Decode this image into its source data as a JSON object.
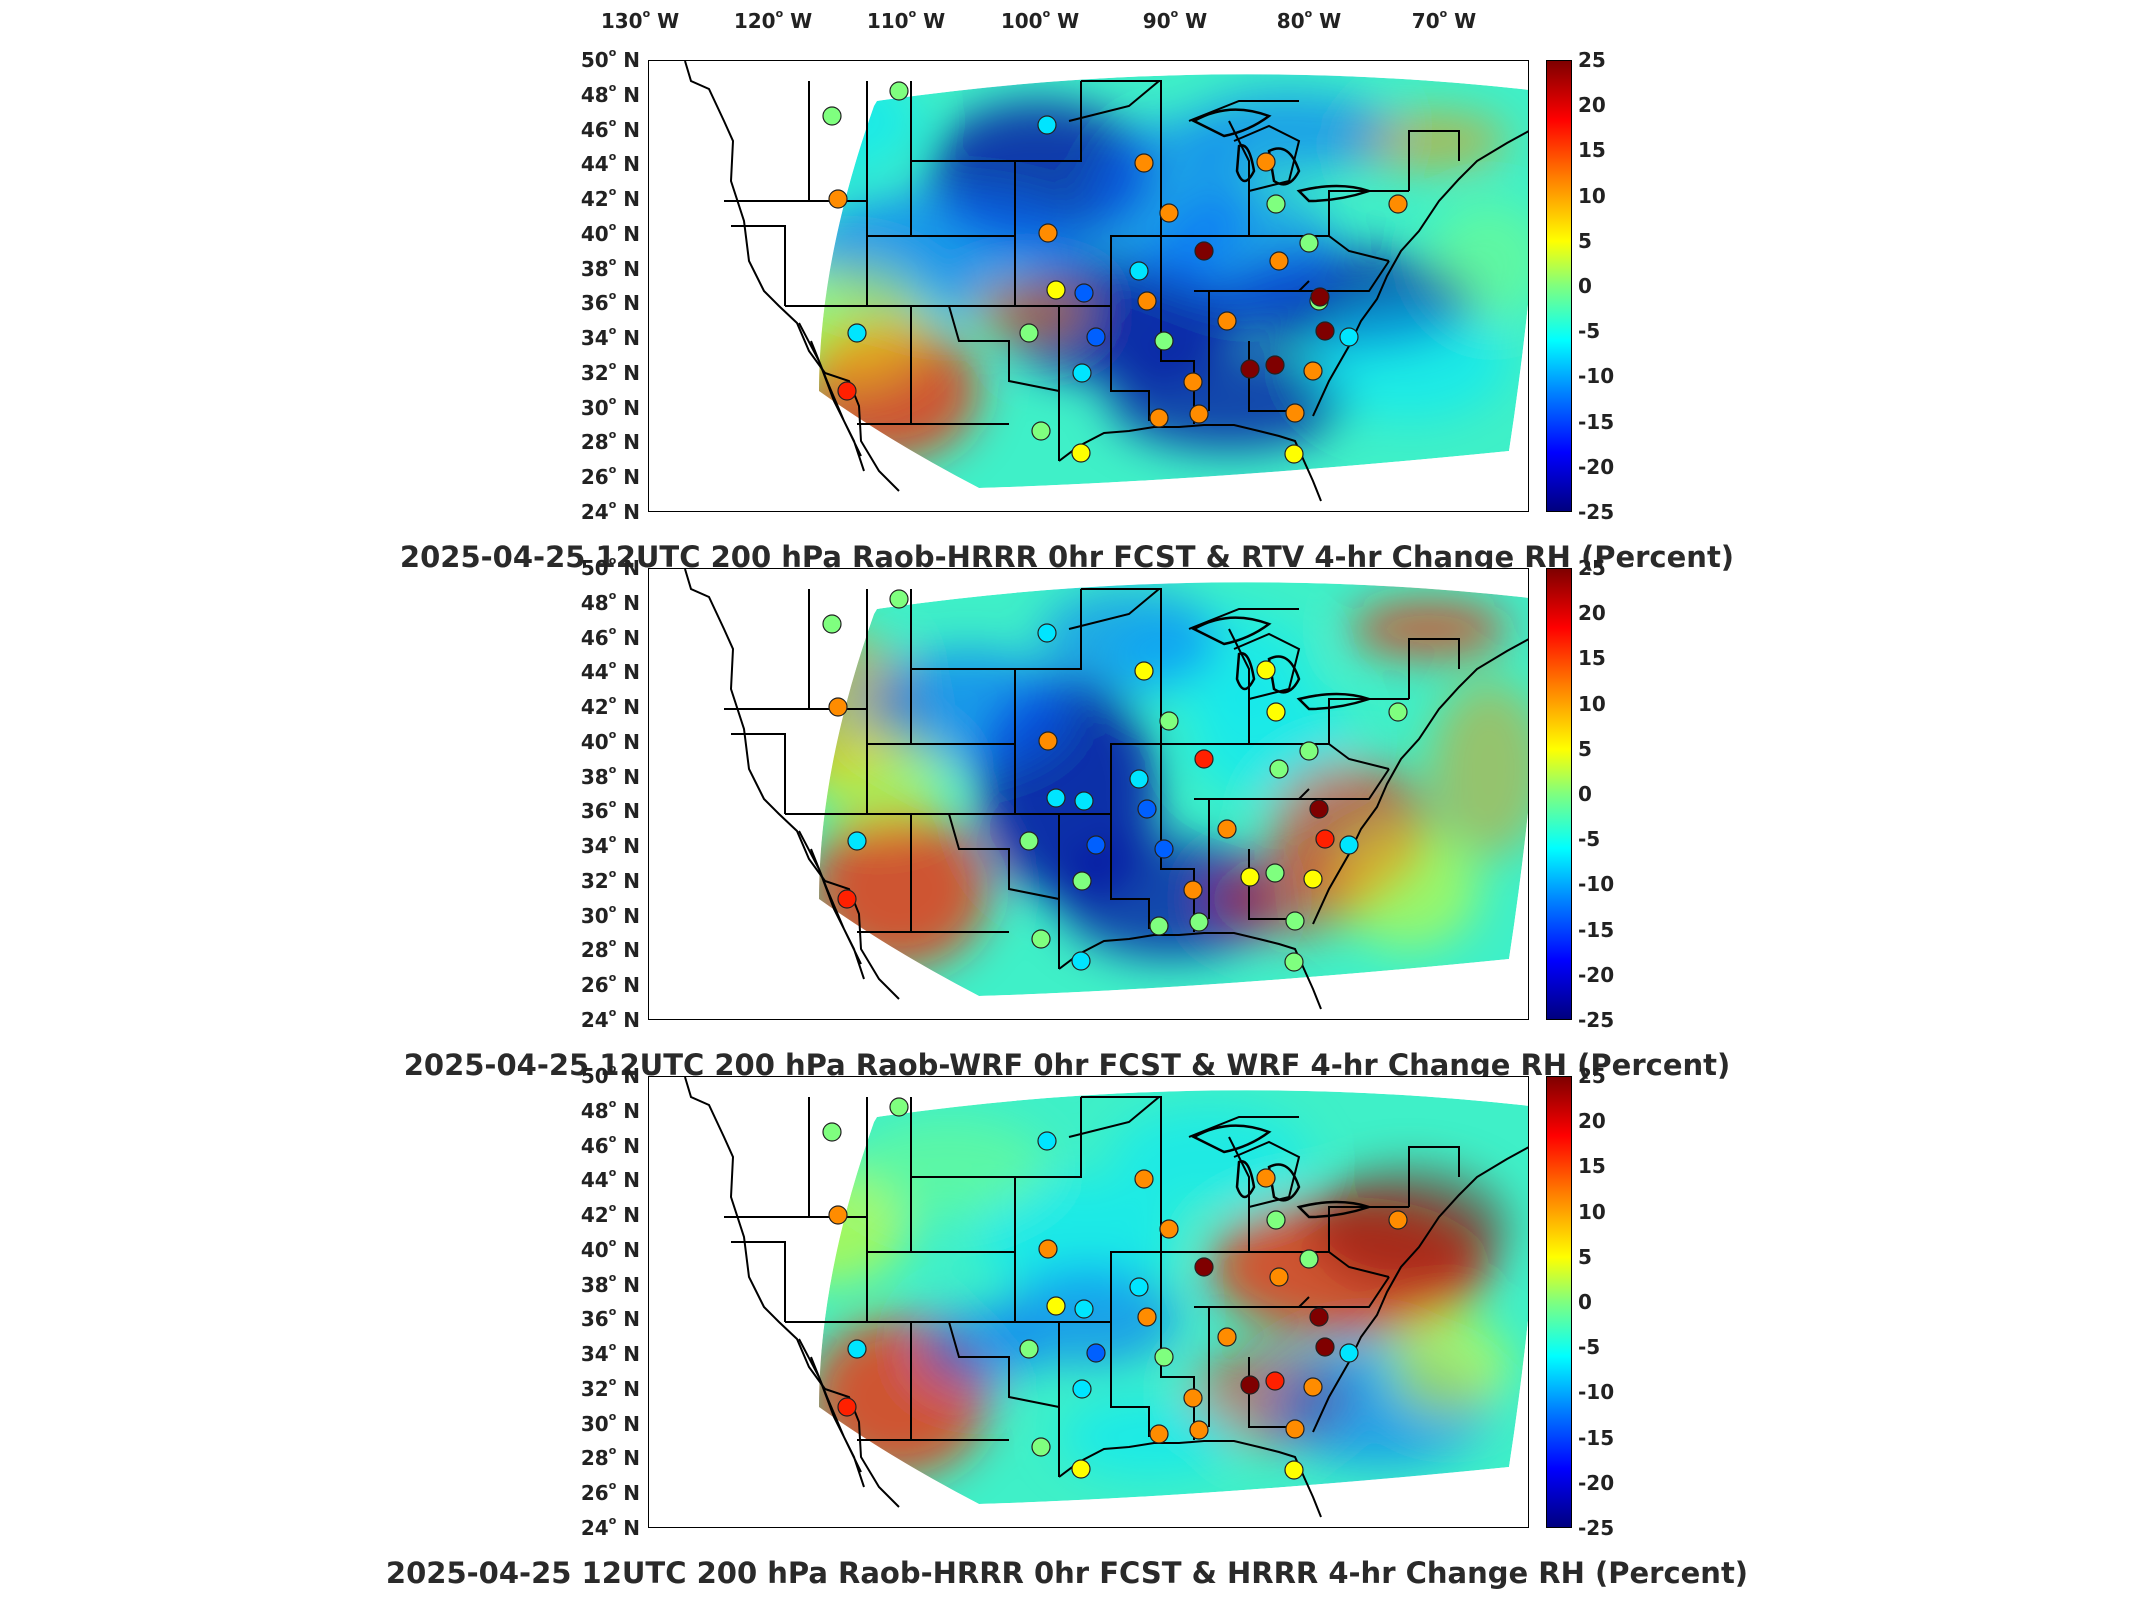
{
  "longitude_labels": [
    {
      "deg": "130",
      "hem": "W"
    },
    {
      "deg": "120",
      "hem": "W"
    },
    {
      "deg": "110",
      "hem": "W"
    },
    {
      "deg": "100",
      "hem": "W"
    },
    {
      "deg": "90",
      "hem": "W"
    },
    {
      "deg": "80",
      "hem": "W"
    },
    {
      "deg": "70",
      "hem": "W"
    }
  ],
  "latitude_labels": [
    {
      "deg": "50",
      "hem": "N"
    },
    {
      "deg": "48",
      "hem": "N"
    },
    {
      "deg": "46",
      "hem": "N"
    },
    {
      "deg": "44",
      "hem": "N"
    },
    {
      "deg": "42",
      "hem": "N"
    },
    {
      "deg": "40",
      "hem": "N"
    },
    {
      "deg": "38",
      "hem": "N"
    },
    {
      "deg": "36",
      "hem": "N"
    },
    {
      "deg": "34",
      "hem": "N"
    },
    {
      "deg": "32",
      "hem": "N"
    },
    {
      "deg": "30",
      "hem": "N"
    },
    {
      "deg": "28",
      "hem": "N"
    },
    {
      "deg": "26",
      "hem": "N"
    },
    {
      "deg": "24",
      "hem": "N"
    }
  ],
  "colorbar": {
    "ticks": [
      "25",
      "20",
      "15",
      "10",
      "5",
      "0",
      "-5",
      "-10",
      "-15",
      "-20",
      "-25"
    ],
    "range": [
      -25,
      25
    ],
    "colormap": "jet"
  },
  "panels": [
    {
      "title": "2025-04-25 12UTC 200 hPa Raob-HRRR 0hr FCST & RTV 4-hr Change RH (Percent)"
    },
    {
      "title": "2025-04-25 12UTC 200 hPa Raob-WRF 0hr FCST & WRF 4-hr Change RH (Percent)"
    },
    {
      "title": "2025-04-25 12UTC 200 hPa Raob-HRRR 0hr FCST & HRRR 4-hr Change RH (Percent)"
    }
  ],
  "colors": {
    "dark_red": "#7f0000",
    "red": "#ff2000",
    "orange": "#ff8c00",
    "yellow": "#ffff00",
    "green": "#7fff7f",
    "cyan": "#00e5ff",
    "blue": "#0060ff",
    "dark_blue": "#0000a0"
  }
}
